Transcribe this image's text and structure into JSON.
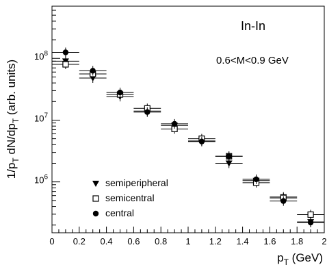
{
  "chart_data": {
    "type": "scatter",
    "title": "",
    "annotations": {
      "system": "In-In",
      "mass_range": "0.6<M<0.9 GeV"
    },
    "xlabel": "p_T (GeV)",
    "ylabel": "1/p_T dN/dp_T (arb. units)",
    "xlim": [
      0,
      2
    ],
    "ylim": [
      150000,
      700000000
    ],
    "y_scale": "log",
    "x_ticks": [
      0,
      0.2,
      0.4,
      0.6,
      0.8,
      1.0,
      1.2,
      1.4,
      1.6,
      1.8,
      2.0
    ],
    "x_tick_labels": [
      "0",
      "0.2",
      "0.4",
      "0.6",
      "0.8",
      "1",
      "1.2",
      "1.4",
      "1.6",
      "1.8",
      "2"
    ],
    "y_ticks": [
      1000000,
      10000000,
      100000000
    ],
    "y_tick_labels": [
      {
        "base": "10",
        "exp": "6"
      },
      {
        "base": "10",
        "exp": "7"
      },
      {
        "base": "10",
        "exp": "8"
      }
    ],
    "grid": false,
    "legend_position": "bottom-left",
    "x_error_halfwidth": 0.1,
    "series": [
      {
        "name": "semiperipheral",
        "marker": "triangle-down",
        "x": [
          0.1,
          0.3,
          0.5,
          0.7,
          0.9,
          1.1,
          1.3,
          1.5,
          1.7,
          1.9
        ],
        "y": [
          90000000,
          48000000,
          24000000,
          14000000,
          8200000,
          4600000,
          2000000,
          1050000,
          570000,
          225000
        ]
      },
      {
        "name": "semicentral",
        "marker": "square-open",
        "x": [
          0.1,
          0.3,
          0.5,
          0.7,
          0.9,
          1.1,
          1.3,
          1.5,
          1.7,
          1.9
        ],
        "y": [
          80000000,
          56000000,
          26000000,
          15500000,
          7200000,
          5000000,
          2600000,
          970000,
          550000,
          295000
        ]
      },
      {
        "name": "central",
        "marker": "circle-filled",
        "x": [
          0.1,
          0.3,
          0.5,
          0.7,
          0.9,
          1.1,
          1.3,
          1.5,
          1.7,
          1.9
        ],
        "y": [
          125000000,
          63000000,
          28000000,
          13500000,
          8700000,
          4500000,
          2600000,
          1100000,
          490000,
          220000
        ]
      }
    ]
  }
}
